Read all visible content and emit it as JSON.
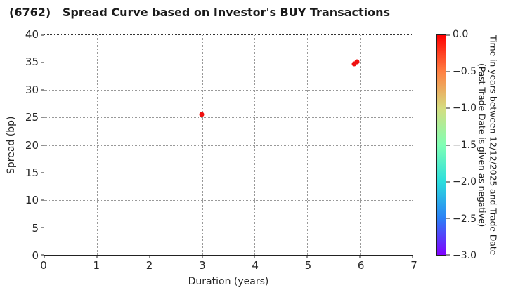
{
  "figure": {
    "title": "(6762)   Spread Curve based on Investor's BUY Transactions"
  },
  "chart_data": {
    "type": "scatter",
    "title": "(6762)   Spread Curve based on Investor's BUY Transactions",
    "xlabel": "Duration (years)",
    "ylabel": "Spread (bp)",
    "xlim": [
      0,
      7
    ],
    "ylim": [
      0,
      40
    ],
    "xticks": [
      0,
      1,
      2,
      3,
      4,
      5,
      6,
      7
    ],
    "yticks": [
      0,
      5,
      10,
      15,
      20,
      25,
      30,
      35,
      40
    ],
    "grid": true,
    "grid_style": "dotted",
    "legend_position": "none",
    "series": [
      {
        "name": "BUY transactions",
        "marker_color": "#f01010",
        "points": [
          {
            "x": 2.99,
            "y": 25.6,
            "time_years": 0.0
          },
          {
            "x": 5.89,
            "y": 34.7,
            "time_years": 0.0
          },
          {
            "x": 5.94,
            "y": 35.1,
            "time_years": 0.0
          }
        ]
      }
    ],
    "colorbar": {
      "title_line1": "Time in years between 12/12/2025 and Trade Date",
      "title_line2": "(Past Trade Date is given as negative)",
      "tick_labels": [
        "0.0",
        "−0.5",
        "−1.0",
        "−1.5",
        "−2.0",
        "−2.5",
        "−3.0"
      ],
      "vmax": 0.0,
      "vmin": -3.0,
      "colormap": "rainbow",
      "gradient_top_to_bottom": [
        "#ff0000",
        "#ff8042",
        "#d5dd80",
        "#80ffb4",
        "#2bdddd",
        "#2b80f6",
        "#8000ff"
      ]
    }
  }
}
